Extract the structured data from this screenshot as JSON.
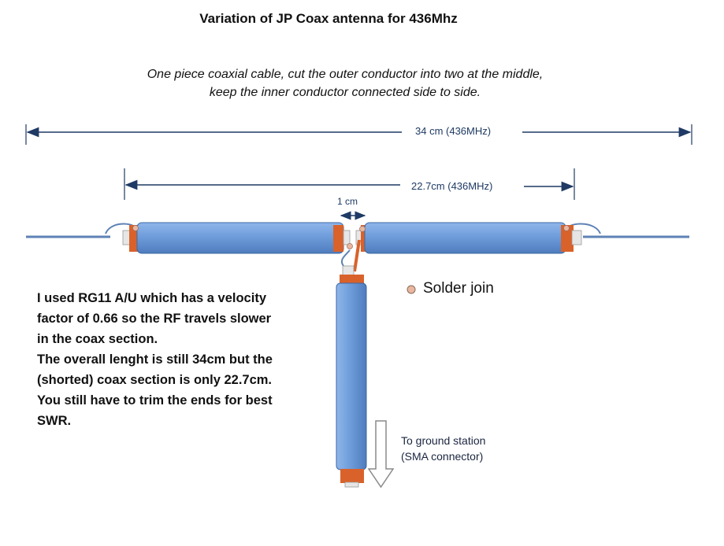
{
  "title": "Variation of JP Coax antenna for 436Mhz",
  "subtitle_lines": [
    "One piece coaxial cable, cut the outer conductor into two at the middle,",
    "keep the inner conductor connected side to side."
  ],
  "dimensions": {
    "overall": "34 cm (436MHz)",
    "coax_section": "22.7cm (436MHz)",
    "gap": "1 cm"
  },
  "note_lines": [
    "I used RG11 A/U which has a velocity",
    "factor of 0.66 so the RF travels slower",
    "in the coax section.",
    "The overall lenght is still 34cm but the",
    "(shorted) coax section is only 22.7cm.",
    "You still have to trim the ends for best",
    "SWR."
  ],
  "legend": {
    "label": "Solder join",
    "marker_color": "#e9b7a0"
  },
  "feed_label_lines": [
    "To ground station",
    "(SMA connector)"
  ],
  "colors": {
    "coax_body": "#6f9ddb",
    "coax_edge": "#3d68a6",
    "copper": "#d9622b",
    "insulator": "#e6e6e6",
    "wire": "#5e82b5",
    "dimension_line": "#1f3a64"
  }
}
